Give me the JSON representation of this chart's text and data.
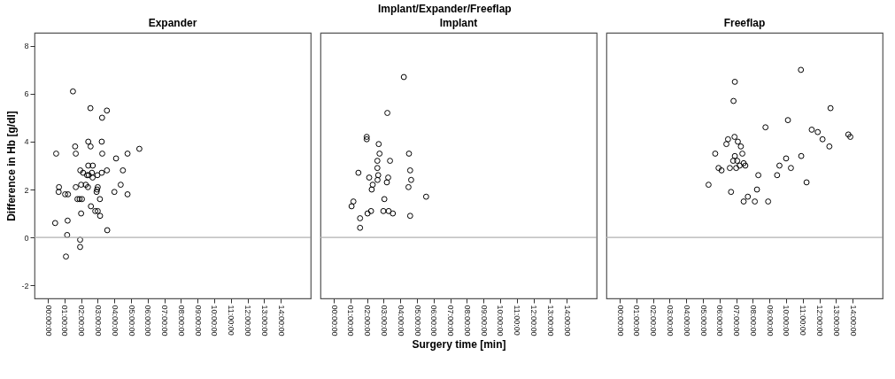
{
  "chart_data": [
    {
      "type": "scatter",
      "title": "Expander",
      "annotations": [
        "Implant/Expander/Freeflap"
      ],
      "ylabel": "Difference in Hb [g/dl]",
      "marker": "circle",
      "grid": false,
      "xlim": [
        -0.8,
        15.8
      ],
      "ylim": [
        -2.55,
        8.55
      ],
      "xticks": [
        {
          "value": 0,
          "label": "00:00:00"
        },
        {
          "value": 1,
          "label": "01:00:00"
        },
        {
          "value": 2,
          "label": "02:00:00"
        },
        {
          "value": 3,
          "label": "03:00:00"
        },
        {
          "value": 4,
          "label": "04:00:00"
        },
        {
          "value": 5,
          "label": "05:00:00"
        },
        {
          "value": 6,
          "label": "06:00:00"
        },
        {
          "value": 7,
          "label": "07:00:00"
        },
        {
          "value": 8,
          "label": "08:00:00"
        },
        {
          "value": 9,
          "label": "09:00:00"
        },
        {
          "value": 10,
          "label": "10:00:00"
        },
        {
          "value": 11,
          "label": "11:00:00"
        },
        {
          "value": 12,
          "label": "12:00:00"
        },
        {
          "value": 13,
          "label": "13:00:00"
        },
        {
          "value": 14,
          "label": "14:00:00"
        }
      ],
      "yticks": [
        -2,
        0,
        2,
        4,
        6,
        8
      ],
      "ref_lines": [
        {
          "axis": "y",
          "value": 0,
          "color": "#b0b0b0"
        }
      ],
      "series": [
        {
          "color": "#000000",
          "x": [
            1.51,
            2.56,
            3.55,
            3.26,
            2.43,
            3.24,
            1.64,
            2.57,
            0.5,
            1.68,
            3.27,
            4.79,
            5.5,
            4.1,
            2.43,
            2.7,
            1.95,
            3.55,
            4.51,
            2.12,
            2.65,
            3.24,
            2.36,
            2.46,
            2.98,
            2.69,
            0.67,
            1.68,
            2.0,
            2.28,
            2.41,
            3.0,
            2.96,
            2.93,
            4.38,
            0.65,
            4.0,
            1.04,
            1.21,
            4.79,
            1.78,
            1.91,
            2.05,
            3.13,
            2.59,
            2.85,
            3.0,
            3.14,
            2.0,
            0.44,
            1.19,
            3.57,
            1.16,
            1.94,
            1.94,
            1.09
          ],
          "values": [
            6.1,
            5.4,
            5.3,
            5.0,
            4.0,
            4.0,
            3.8,
            3.8,
            3.5,
            3.5,
            3.5,
            3.5,
            3.7,
            3.3,
            3.0,
            3.0,
            2.8,
            2.8,
            2.8,
            2.7,
            2.7,
            2.7,
            2.6,
            2.6,
            2.6,
            2.5,
            2.1,
            2.1,
            2.2,
            2.2,
            2.1,
            2.1,
            2.0,
            1.9,
            2.2,
            1.9,
            1.9,
            1.8,
            1.8,
            1.8,
            1.6,
            1.6,
            1.6,
            1.6,
            1.3,
            1.1,
            1.1,
            0.9,
            1.0,
            0.6,
            0.7,
            0.3,
            0.1,
            -0.1,
            -0.4,
            -0.8
          ]
        }
      ]
    },
    {
      "type": "scatter",
      "title": "Implant",
      "xlabel": "Surgery time [min]",
      "marker": "circle",
      "grid": false,
      "tick_labels": "x",
      "xlim": [
        -0.8,
        15.8
      ],
      "ylim": [
        -2.55,
        8.55
      ],
      "xticks": [
        {
          "value": 0,
          "label": "00:00:00"
        },
        {
          "value": 1,
          "label": "01:00:00"
        },
        {
          "value": 2,
          "label": "02:00:00"
        },
        {
          "value": 3,
          "label": "03:00:00"
        },
        {
          "value": 4,
          "label": "04:00:00"
        },
        {
          "value": 5,
          "label": "05:00:00"
        },
        {
          "value": 6,
          "label": "06:00:00"
        },
        {
          "value": 7,
          "label": "07:00:00"
        },
        {
          "value": 8,
          "label": "08:00:00"
        },
        {
          "value": 9,
          "label": "09:00:00"
        },
        {
          "value": 10,
          "label": "10:00:00"
        },
        {
          "value": 11,
          "label": "11:00:00"
        },
        {
          "value": 12,
          "label": "12:00:00"
        },
        {
          "value": 13,
          "label": "13:00:00"
        },
        {
          "value": 14,
          "label": "14:00:00"
        }
      ],
      "yticks": [
        -2,
        0,
        2,
        4,
        6,
        8
      ],
      "ref_lines": [
        {
          "axis": "y",
          "value": 0,
          "color": "#b0b0b0"
        }
      ],
      "series": [
        {
          "color": "#000000",
          "x": [
            4.21,
            3.22,
            1.98,
            1.98,
            2.7,
            2.75,
            4.52,
            2.62,
            3.38,
            2.62,
            4.59,
            1.48,
            2.67,
            2.13,
            2.63,
            3.27,
            4.65,
            3.19,
            2.34,
            4.49,
            2.28,
            5.55,
            3.04,
            1.18,
            1.07,
            2.24,
            2.03,
            2.98,
            3.3,
            3.55,
            4.59,
            1.58,
            1.58
          ],
          "values": [
            6.7,
            5.2,
            4.2,
            4.1,
            3.9,
            3.5,
            3.5,
            3.2,
            3.2,
            2.9,
            2.8,
            2.7,
            2.6,
            2.5,
            2.4,
            2.5,
            2.4,
            2.3,
            2.2,
            2.1,
            2.0,
            1.7,
            1.6,
            1.5,
            1.3,
            1.1,
            1.0,
            1.1,
            1.1,
            1.0,
            0.9,
            0.8,
            0.4
          ]
        }
      ]
    },
    {
      "type": "scatter",
      "title": "Freeflap",
      "marker": "circle",
      "grid": false,
      "tick_labels": "x",
      "xlim": [
        -0.8,
        15.8
      ],
      "ylim": [
        -2.55,
        8.55
      ],
      "xticks": [
        {
          "value": 0,
          "label": "00:00:00"
        },
        {
          "value": 1,
          "label": "01:00:00"
        },
        {
          "value": 2,
          "label": "02:00:00"
        },
        {
          "value": 3,
          "label": "03:00:00"
        },
        {
          "value": 4,
          "label": "04:00:00"
        },
        {
          "value": 5,
          "label": "05:00:00"
        },
        {
          "value": 6,
          "label": "06:00:00"
        },
        {
          "value": 7,
          "label": "07:00:00"
        },
        {
          "value": 8,
          "label": "08:00:00"
        },
        {
          "value": 9,
          "label": "09:00:00"
        },
        {
          "value": 10,
          "label": "10:00:00"
        },
        {
          "value": 11,
          "label": "11:00:00"
        },
        {
          "value": 12,
          "label": "12:00:00"
        },
        {
          "value": 13,
          "label": "13:00:00"
        },
        {
          "value": 14,
          "label": "14:00:00"
        }
      ],
      "yticks": [
        -2,
        0,
        2,
        4,
        6,
        8
      ],
      "ref_lines": [
        {
          "axis": "y",
          "value": 0,
          "color": "#b0b0b0"
        }
      ],
      "series": [
        {
          "color": "#000000",
          "x": [
            10.89,
            6.92,
            6.84,
            12.67,
            10.11,
            8.76,
            11.54,
            11.9,
            12.19,
            12.6,
            13.74,
            13.86,
            6.9,
            6.51,
            6.41,
            7.1,
            7.28,
            5.74,
            7.37,
            6.92,
            10.91,
            6.82,
            7.06,
            10.0,
            7.45,
            7.21,
            7.55,
            5.94,
            6.62,
            7.0,
            6.12,
            9.6,
            10.29,
            8.33,
            9.46,
            11.23,
            5.34,
            6.69,
            8.25,
            7.7,
            7.45,
            8.12,
            8.92
          ],
          "values": [
            7.0,
            6.5,
            5.7,
            5.4,
            4.9,
            4.6,
            4.5,
            4.4,
            4.1,
            3.8,
            4.3,
            4.2,
            4.2,
            4.1,
            3.9,
            4.0,
            3.8,
            3.5,
            3.5,
            3.4,
            3.4,
            3.2,
            3.2,
            3.3,
            3.1,
            3.0,
            3.0,
            2.9,
            2.9,
            2.9,
            2.8,
            3.0,
            2.9,
            2.6,
            2.6,
            2.3,
            2.2,
            1.9,
            2.0,
            1.7,
            1.5,
            1.5,
            1.5
          ]
        }
      ]
    }
  ]
}
